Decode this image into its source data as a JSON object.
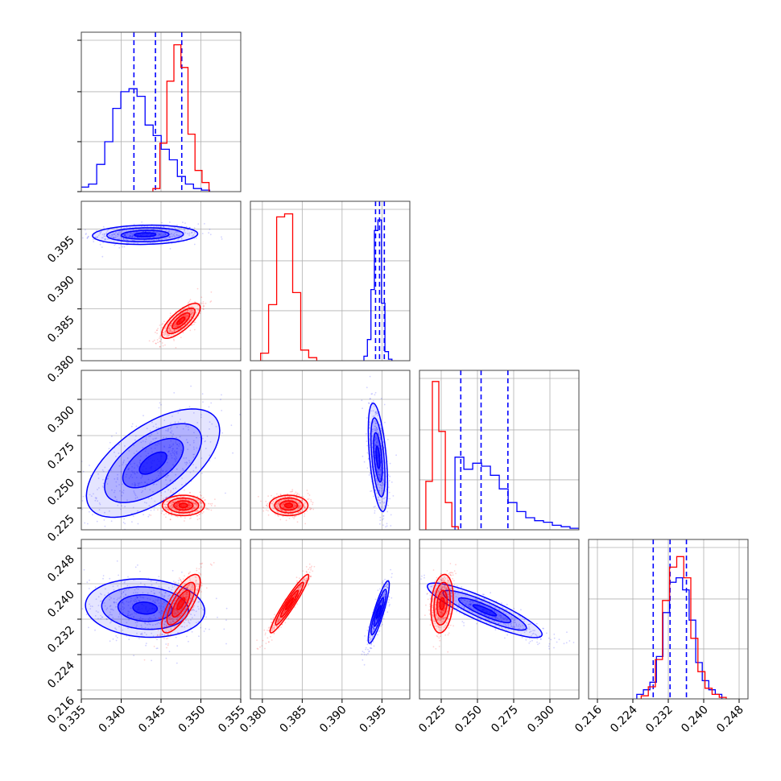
{
  "chart_data": {
    "type": "corner",
    "grid": true,
    "colors": {
      "series_a": "#0000ff",
      "series_b": "#ff0000"
    },
    "parameters": [
      {
        "range": [
          0.335,
          0.355
        ],
        "ticks": [
          0.335,
          0.34,
          0.345,
          0.35,
          0.355
        ],
        "tick_labels": [
          "0.335",
          "0.340",
          "0.345",
          "0.350",
          "0.355"
        ]
      },
      {
        "range": [
          0.3785,
          0.3985
        ],
        "ticks": [
          0.38,
          0.385,
          0.39,
          0.395
        ],
        "tick_labels": [
          "0.380",
          "0.385",
          "0.390",
          "0.395"
        ]
      },
      {
        "range": [
          0.21,
          0.32
        ],
        "ticks": [
          0.225,
          0.25,
          0.275,
          0.3
        ],
        "tick_labels": [
          "0.225",
          "0.250",
          "0.275",
          "0.300"
        ]
      },
      {
        "range": [
          0.214,
          0.25
        ],
        "ticks": [
          0.216,
          0.224,
          0.232,
          0.24,
          0.248
        ],
        "tick_labels": [
          "0.216",
          "0.224",
          "0.232",
          "0.240",
          "0.248"
        ]
      }
    ],
    "series": [
      {
        "color": "#0000ff",
        "quantiles": [
          [
            0.3416,
            0.3443,
            0.3476
          ],
          [
            0.3942,
            0.3947,
            0.3953
          ],
          [
            0.2385,
            0.2525,
            0.271
          ],
          [
            0.2286,
            0.2324,
            0.2361
          ]
        ],
        "histograms": [
          [
            0.03,
            0.05,
            0.18,
            0.33,
            0.55,
            0.66,
            0.68,
            0.63,
            0.44,
            0.37,
            0.28,
            0.21,
            0.1,
            0.05,
            0.02,
            0.01
          ],
          [
            0.03,
            0.14,
            0.47,
            0.86,
            0.93,
            0.38,
            0.06,
            0.01
          ],
          [
            0.48,
            0.4,
            0.44,
            0.42,
            0.36,
            0.27,
            0.18,
            0.12,
            0.08,
            0.06,
            0.05,
            0.03,
            0.02,
            0.01
          ],
          [
            0.03,
            0.06,
            0.11,
            0.28,
            0.57,
            0.77,
            0.8,
            0.72,
            0.52,
            0.24,
            0.12,
            0.06,
            0.03
          ]
        ],
        "contours": [
          {
            "params": [
              0,
              1
            ],
            "center": [
              0.343,
              0.3943
            ],
            "sx": 0.003,
            "sy": 0.00055,
            "rho": 0.1
          },
          {
            "params": [
              0,
              2
            ],
            "center": [
              0.344,
              0.256
            ],
            "sx": 0.0038,
            "sy": 0.017,
            "rho": 0.6
          },
          {
            "params": [
              0,
              3
            ],
            "center": [
              0.343,
              0.2345
            ],
            "sx": 0.0034,
            "sy": 0.003,
            "rho": -0.1
          },
          {
            "params": [
              1,
              2
            ],
            "center": [
              0.3945,
              0.26
            ],
            "sx": 0.00055,
            "sy": 0.017,
            "rho": -0.5
          },
          {
            "params": [
              1,
              3
            ],
            "center": [
              0.3946,
              0.2336
            ],
            "sx": 0.0006,
            "sy": 0.0032,
            "rho": 0.88
          },
          {
            "params": [
              2,
              3
            ],
            "center": [
              0.255,
              0.234
            ],
            "sx": 0.018,
            "sy": 0.0028,
            "rho": -0.88
          }
        ]
      },
      {
        "color": "#ff0000",
        "quantiles": null,
        "histograms": [
          [
            0.02,
            0.32,
            0.73,
            0.97,
            0.82,
            0.38,
            0.14,
            0.06
          ],
          [
            0.05,
            0.37,
            0.95,
            0.97,
            0.45,
            0.07,
            0.02
          ],
          [
            0.32,
            0.98,
            0.65,
            0.18,
            0.02
          ],
          [
            0.02,
            0.08,
            0.26,
            0.65,
            0.87,
            0.94,
            0.8,
            0.4,
            0.18,
            0.07,
            0.03,
            0.01
          ]
        ],
        "contours": [
          {
            "params": [
              0,
              1
            ],
            "center": [
              0.3475,
              0.3835
            ],
            "sx": 0.0011,
            "sy": 0.001,
            "rho": 0.75
          },
          {
            "params": [
              0,
              2
            ],
            "center": [
              0.3478,
              0.2268
            ],
            "sx": 0.0012,
            "sy": 0.0032,
            "rho": 0.0
          },
          {
            "params": [
              0,
              3
            ],
            "center": [
              0.3475,
              0.2355
            ],
            "sx": 0.0011,
            "sy": 0.003,
            "rho": 0.75
          },
          {
            "params": [
              1,
              2
            ],
            "center": [
              0.3833,
              0.2268
            ],
            "sx": 0.0011,
            "sy": 0.0032,
            "rho": 0.0
          },
          {
            "params": [
              1,
              3
            ],
            "center": [
              0.3834,
              0.2355
            ],
            "sx": 0.0011,
            "sy": 0.003,
            "rho": 0.95
          },
          {
            "params": [
              2,
              3
            ],
            "center": [
              0.2256,
              0.2355
            ],
            "sx": 0.0035,
            "sy": 0.003,
            "rho": 0.2
          }
        ]
      }
    ]
  }
}
